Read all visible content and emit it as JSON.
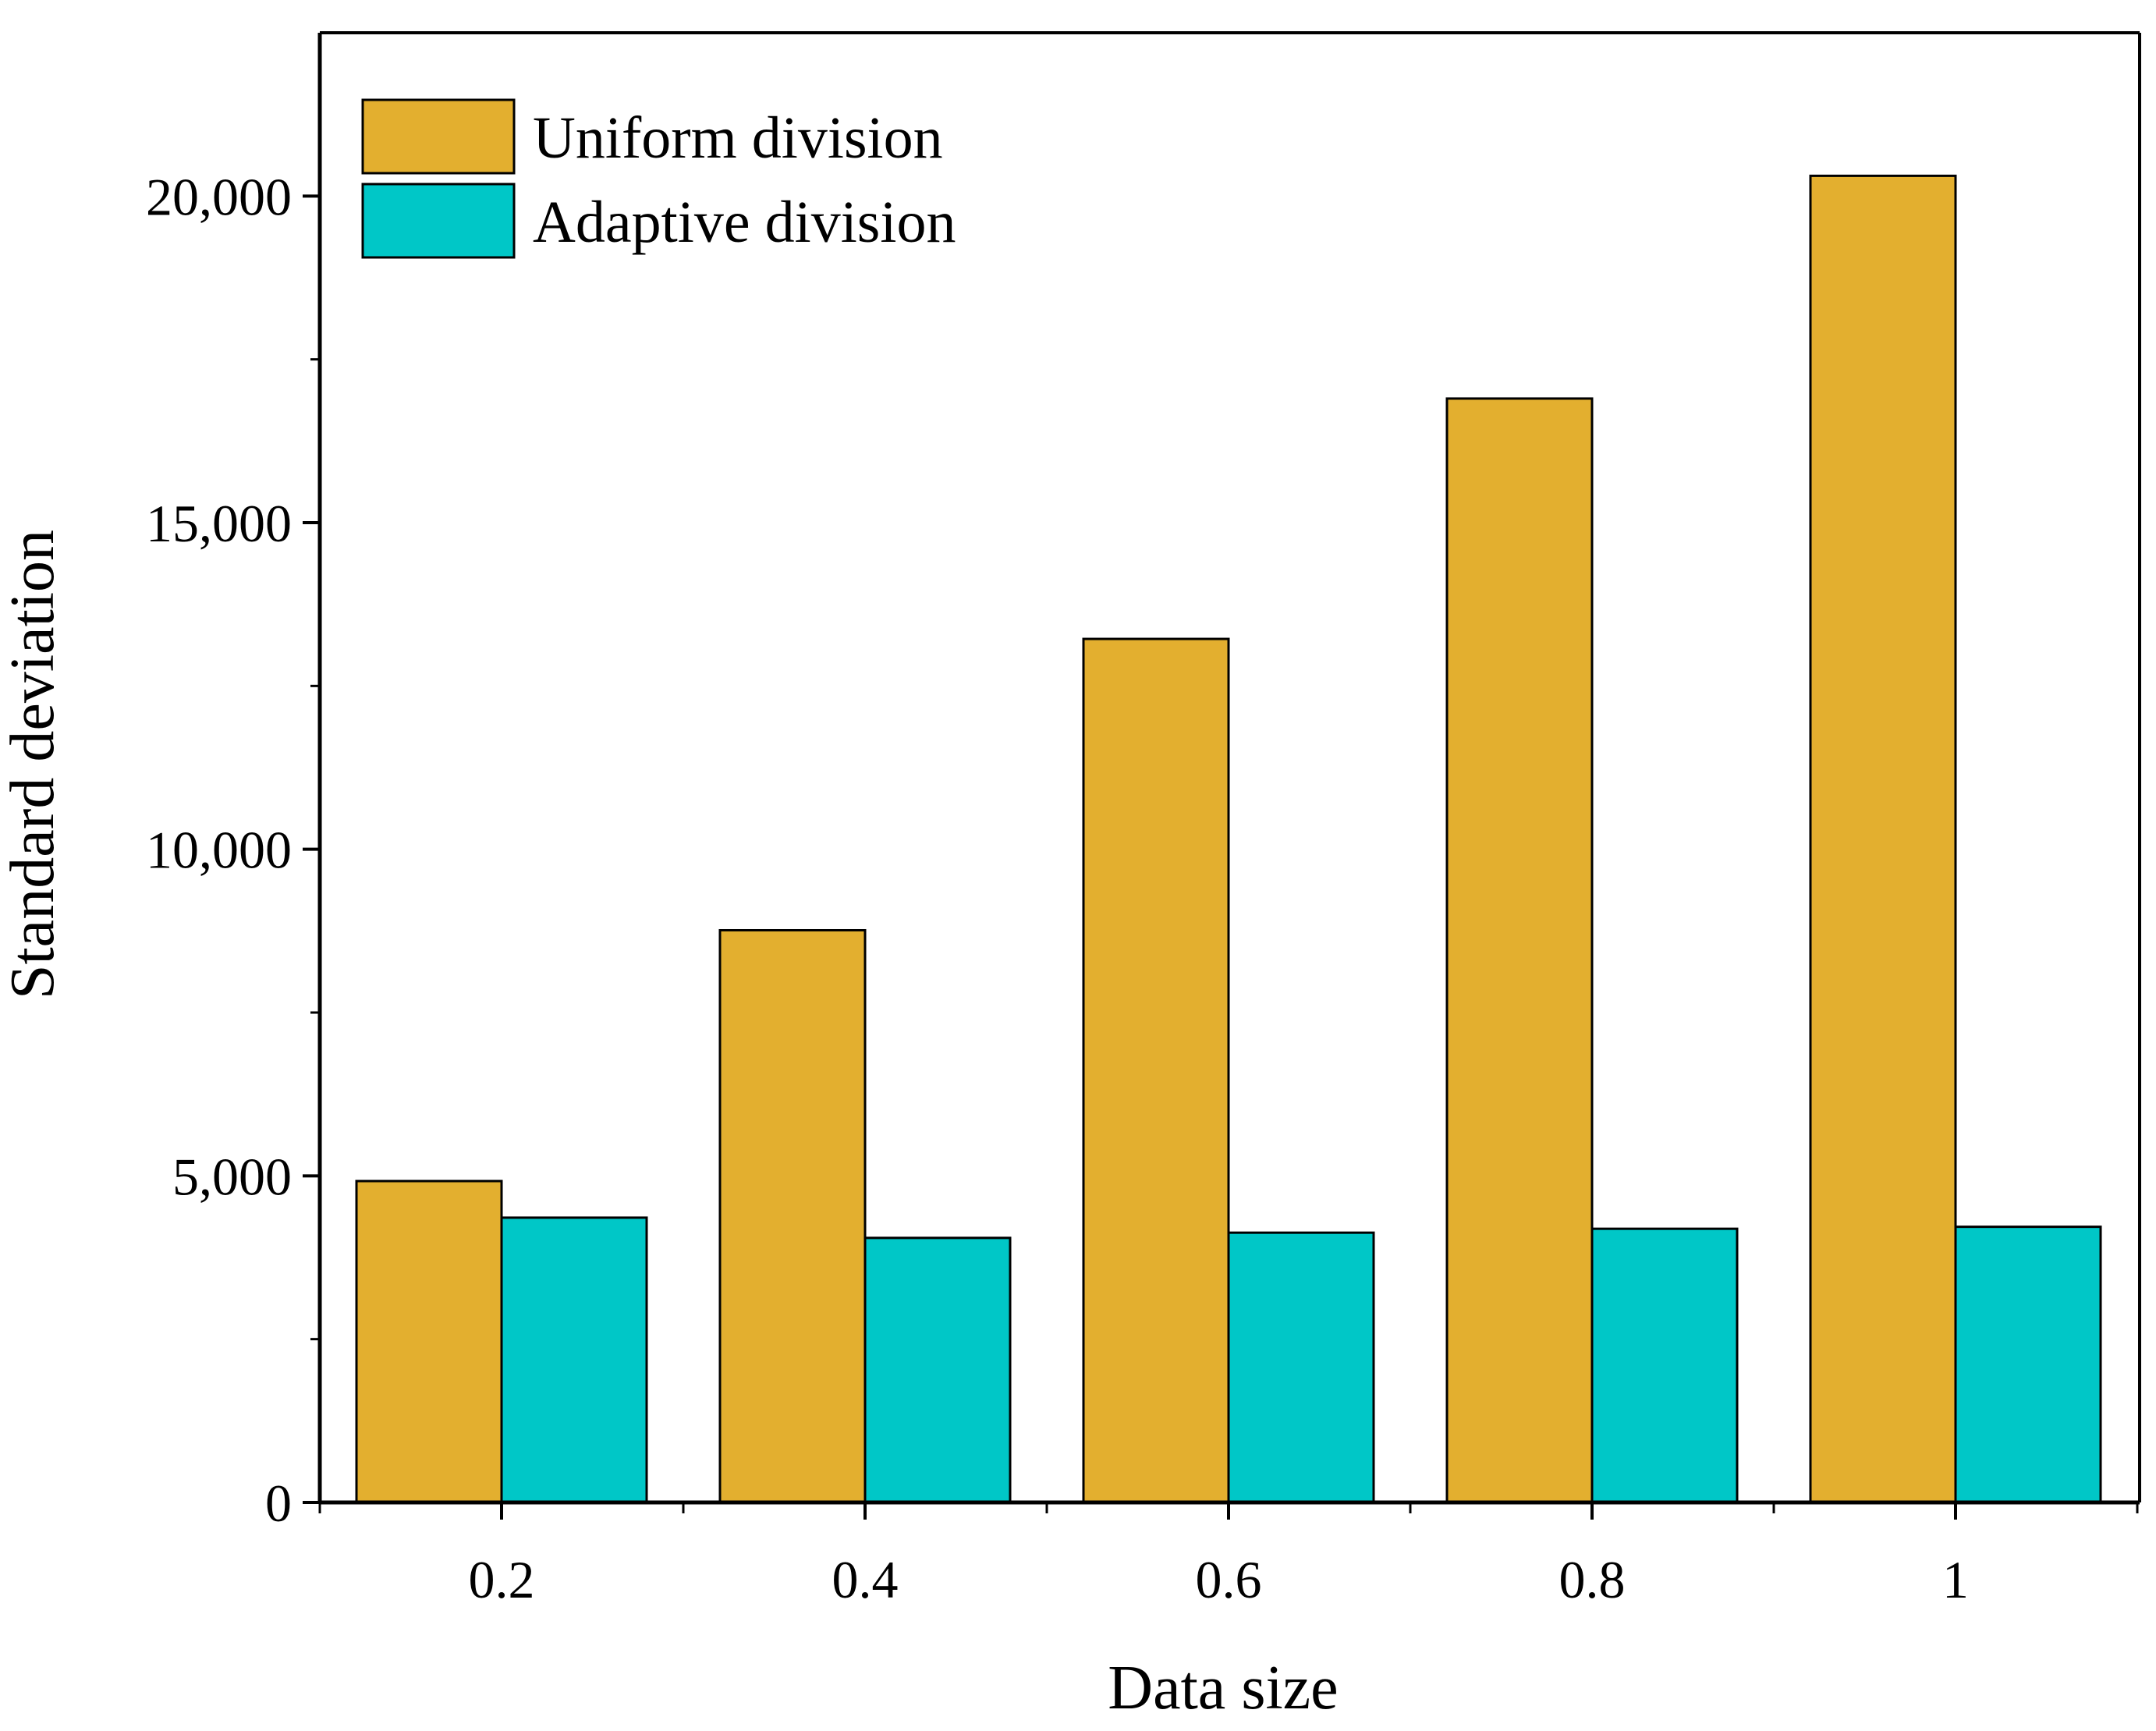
{
  "chart_data": {
    "type": "bar",
    "title": "",
    "xlabel": "Data size",
    "ylabel": "Standard deviation",
    "categories": [
      "0.2",
      "0.4",
      "0.6",
      "0.8",
      "1"
    ],
    "series": [
      {
        "name": "Uniform division",
        "color": "#E3AF2F",
        "values": [
          4920,
          8760,
          13220,
          16900,
          20310
        ]
      },
      {
        "name": "Adaptive division",
        "color": "#00C7C7",
        "values": [
          4360,
          4050,
          4130,
          4190,
          4220
        ]
      }
    ],
    "ylim": [
      0,
      22500
    ],
    "yticks": [
      0,
      5000,
      10000,
      15000,
      20000
    ],
    "ytick_labels": [
      "0",
      "5,000",
      "10,000",
      "15,000",
      "20,000"
    ],
    "grid": false,
    "legend_position": "top-left"
  }
}
